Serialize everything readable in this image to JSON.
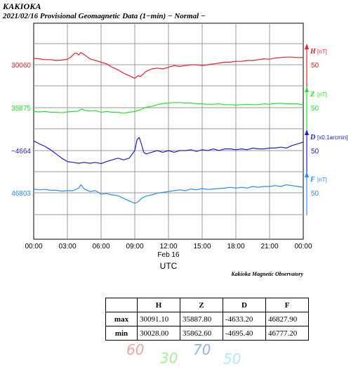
{
  "header": {
    "station": "KAKIOKA",
    "subtitle": "2021/02/16  Provisional Geomagnetic Data (1−min)  − Normal −"
  },
  "chart_data": {
    "type": "line",
    "x_tick_labels": [
      "00:00",
      "03:00",
      "06:00",
      "09:00",
      "12:00",
      "15:00",
      "18:00",
      "21:00",
      "00:00"
    ],
    "x_range_hours": [
      0,
      24
    ],
    "date_label": "Feb 16",
    "xlabel": "UTC",
    "credit": "Kakioka Magnetic Observatory",
    "series": [
      {
        "name": "H",
        "unit": "[nT]",
        "color": "#e8212a",
        "left_label": "30060",
        "right_label": "50",
        "arrow": "up",
        "baseline_y_label": 30060,
        "scale_per_gridstep": 50,
        "x": [
          0,
          0.5,
          1,
          1.5,
          2,
          2.5,
          3,
          3.3,
          3.6,
          3.8,
          4,
          4.2,
          4.5,
          4.8,
          5,
          5.5,
          6,
          6.5,
          7,
          7.5,
          8,
          8.5,
          9,
          9.3,
          9.5,
          10,
          10.5,
          11,
          11.5,
          12,
          12.5,
          13,
          13.5,
          14,
          14.5,
          15,
          15.5,
          16,
          16.5,
          17,
          17.5,
          18,
          18.5,
          19,
          19.5,
          20,
          20.5,
          21,
          21.5,
          22,
          22.5,
          23,
          23.5,
          24
        ],
        "y": [
          30075,
          30074,
          30072,
          30072,
          30070,
          30071,
          30073,
          30078,
          30086,
          30088,
          30083,
          30089,
          30084,
          30078,
          30074,
          30070,
          30066,
          30062,
          30054,
          30048,
          30040,
          30034,
          30028,
          30034,
          30032,
          30044,
          30050,
          30052,
          30050,
          30054,
          30058,
          30056,
          30058,
          30060,
          30060,
          30058,
          30060,
          30062,
          30064,
          30066,
          30066,
          30068,
          30068,
          30070,
          30070,
          30072,
          30074,
          30073,
          30076,
          30077,
          30078,
          30078,
          30077,
          30077
        ]
      },
      {
        "name": "Z",
        "unit": "[nT]",
        "color": "#22e62c",
        "left_label": "35875",
        "right_label": "50",
        "arrow": "up",
        "baseline_y_label": 35875,
        "scale_per_gridstep": 50,
        "x": [
          0,
          0.5,
          1,
          1.5,
          2,
          2.5,
          3,
          3.5,
          4,
          4.3,
          4.6,
          5,
          5.5,
          6,
          6.5,
          7,
          7.5,
          8,
          8.5,
          9,
          9.5,
          10,
          10.5,
          11,
          11.5,
          12,
          12.5,
          13,
          13.5,
          14,
          14.5,
          15,
          15.5,
          16,
          16.5,
          17,
          17.5,
          18,
          18.5,
          19,
          19.5,
          20,
          20.5,
          21,
          21.5,
          22,
          22.5,
          23,
          23.5,
          24
        ],
        "y": [
          35866,
          35865,
          35866,
          35864,
          35864,
          35863,
          35865,
          35866,
          35867,
          35872,
          35868,
          35867,
          35868,
          35864,
          35866,
          35864,
          35864,
          35862,
          35864,
          35866,
          35870,
          35876,
          35878,
          35882,
          35885,
          35886,
          35887,
          35887,
          35886,
          35886,
          35884,
          35884,
          35883,
          35883,
          35884,
          35882,
          35882,
          35881,
          35882,
          35883,
          35882,
          35882,
          35884,
          35883,
          35885,
          35885,
          35884,
          35884,
          35884,
          35882
        ]
      },
      {
        "name": "D",
        "unit": "[x0.1arcmin]",
        "color": "#1f1fc8",
        "left_label": "−4664",
        "right_label": "50",
        "arrow": "up",
        "baseline_y_label": -4664,
        "scale_per_gridstep": 50,
        "x": [
          0,
          0.5,
          1,
          1.5,
          2,
          2.5,
          3,
          3.5,
          4,
          4.5,
          5,
          5.5,
          6,
          6.5,
          7,
          7.5,
          8,
          8.5,
          9,
          9.2,
          9.4,
          9.6,
          9.8,
          10,
          10.5,
          11,
          11.5,
          12,
          12.5,
          13,
          13.5,
          14,
          14.5,
          15,
          15.5,
          16,
          16.5,
          17,
          17.5,
          18,
          18.5,
          19,
          19.5,
          20,
          20.5,
          21,
          21.5,
          22,
          22.5,
          23,
          23.5,
          24
        ],
        "y": [
          -4641,
          -4648,
          -4654,
          -4662,
          -4672,
          -4682,
          -4690,
          -4692,
          -4694,
          -4692,
          -4694,
          -4692,
          -4695,
          -4690,
          -4686,
          -4682,
          -4686,
          -4682,
          -4664,
          -4638,
          -4633,
          -4650,
          -4668,
          -4672,
          -4668,
          -4664,
          -4668,
          -4664,
          -4668,
          -4664,
          -4664,
          -4662,
          -4666,
          -4662,
          -4664,
          -4660,
          -4664,
          -4660,
          -4660,
          -4662,
          -4660,
          -4662,
          -4658,
          -4660,
          -4660,
          -4658,
          -4658,
          -4656,
          -4658,
          -4652,
          -4648,
          -4644
        ]
      },
      {
        "name": "F",
        "unit": "[nT]",
        "color": "#2b8cf0",
        "left_label": "46803",
        "right_label": "50",
        "arrow": "up",
        "baseline_y_label": 46803,
        "scale_per_gridstep": 50,
        "x": [
          0,
          0.5,
          1,
          1.5,
          2,
          2.5,
          3,
          3.5,
          4,
          4.2,
          4.5,
          5,
          5.5,
          6,
          6.5,
          7,
          7.5,
          8,
          8.5,
          9,
          9.3,
          9.6,
          10,
          10.5,
          11,
          11.5,
          12,
          12.5,
          13,
          13.5,
          14,
          14.5,
          15,
          15.5,
          16,
          16.5,
          17,
          17.5,
          18,
          18.5,
          19,
          19.5,
          20,
          20.5,
          21,
          21.5,
          22,
          22.5,
          23,
          23.5,
          24
        ],
        "y": [
          46812,
          46810,
          46811,
          46809,
          46809,
          46807,
          46808,
          46808,
          46814,
          46822,
          46812,
          46806,
          46808,
          46800,
          46801,
          46798,
          46796,
          46790,
          46784,
          46778,
          46782,
          46790,
          46795,
          46798,
          46802,
          46804,
          46806,
          46808,
          46810,
          46808,
          46812,
          46810,
          46813,
          46811,
          46812,
          46813,
          46814,
          46816,
          46814,
          46816,
          46814,
          46818,
          46816,
          46818,
          46818,
          46820,
          46818,
          46822,
          46820,
          46818,
          46816
        ]
      }
    ],
    "grid": true
  },
  "stats_table": {
    "columns": [
      "H",
      "Z",
      "D",
      "F"
    ],
    "rows": [
      {
        "label": "max",
        "values": [
          "30091.10",
          "35887.80",
          "-4633.20",
          "46827.90"
        ]
      },
      {
        "label": "min",
        "values": [
          "30028.00",
          "35862.60",
          "-4695.40",
          "46777.20"
        ]
      }
    ]
  },
  "hand_labels": [
    {
      "text": "60",
      "color": "#f2a3a8"
    },
    {
      "text": "30",
      "color": "#a7ef9a"
    },
    {
      "text": "70",
      "color": "#8fb5ea"
    },
    {
      "text": "50",
      "color": "#b3e6ff"
    }
  ]
}
